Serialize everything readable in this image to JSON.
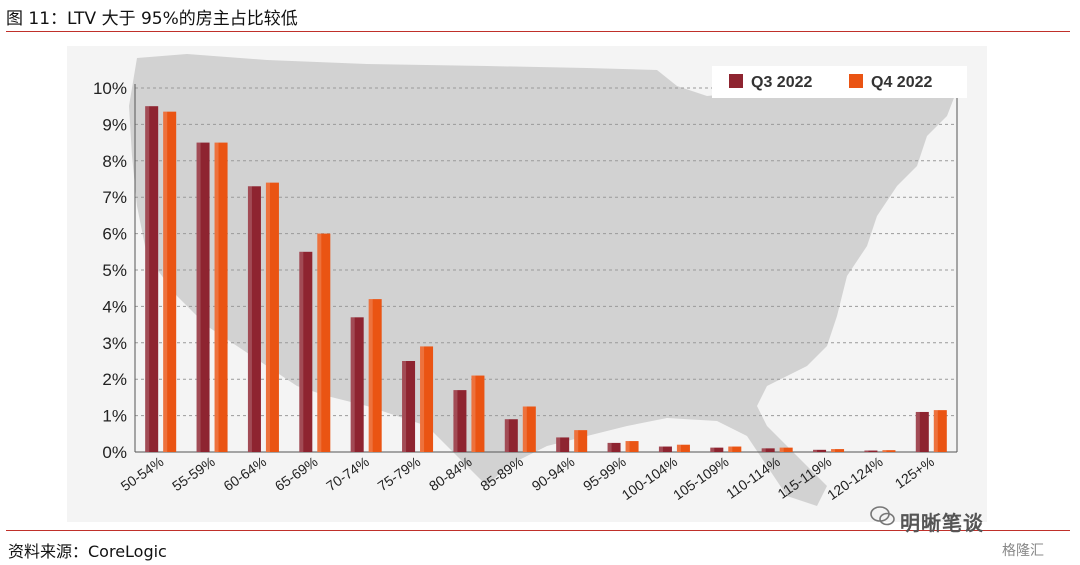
{
  "figure": {
    "title": "图 11：LTV 大于 95%的房主占比较低",
    "source": "资料来源：CoreLogic",
    "watermark_text": "明晰笔谈",
    "brand_text": "格隆汇"
  },
  "colors": {
    "q3": "#8e2430",
    "q4": "#ea5413",
    "rule": "#c0302a",
    "map": "#d2d2d2",
    "background": "#f4f4f4"
  },
  "chart_data": {
    "type": "bar",
    "categories": [
      "50-54%",
      "55-59%",
      "60-64%",
      "65-69%",
      "70-74%",
      "75-79%",
      "80-84%",
      "85-89%",
      "90-94%",
      "95-99%",
      "100-104%",
      "105-109%",
      "110-114%",
      "115-119%",
      "120-124%",
      "125+%"
    ],
    "series": [
      {
        "name": "Q3 2022",
        "values": [
          9.5,
          8.5,
          7.3,
          5.5,
          3.7,
          2.5,
          1.7,
          0.9,
          0.4,
          0.25,
          0.15,
          0.12,
          0.1,
          0.06,
          0.04,
          1.1
        ]
      },
      {
        "name": "Q4 2022",
        "values": [
          9.35,
          8.5,
          7.4,
          6.0,
          4.2,
          2.9,
          2.1,
          1.25,
          0.6,
          0.3,
          0.2,
          0.15,
          0.12,
          0.08,
          0.05,
          1.15
        ]
      }
    ],
    "yticks": [
      "0%",
      "1%",
      "2%",
      "3%",
      "4%",
      "5%",
      "6%",
      "7%",
      "8%",
      "9%",
      "10%"
    ],
    "ylim": [
      0,
      10
    ],
    "grid": true,
    "legend_position": "top-right"
  }
}
